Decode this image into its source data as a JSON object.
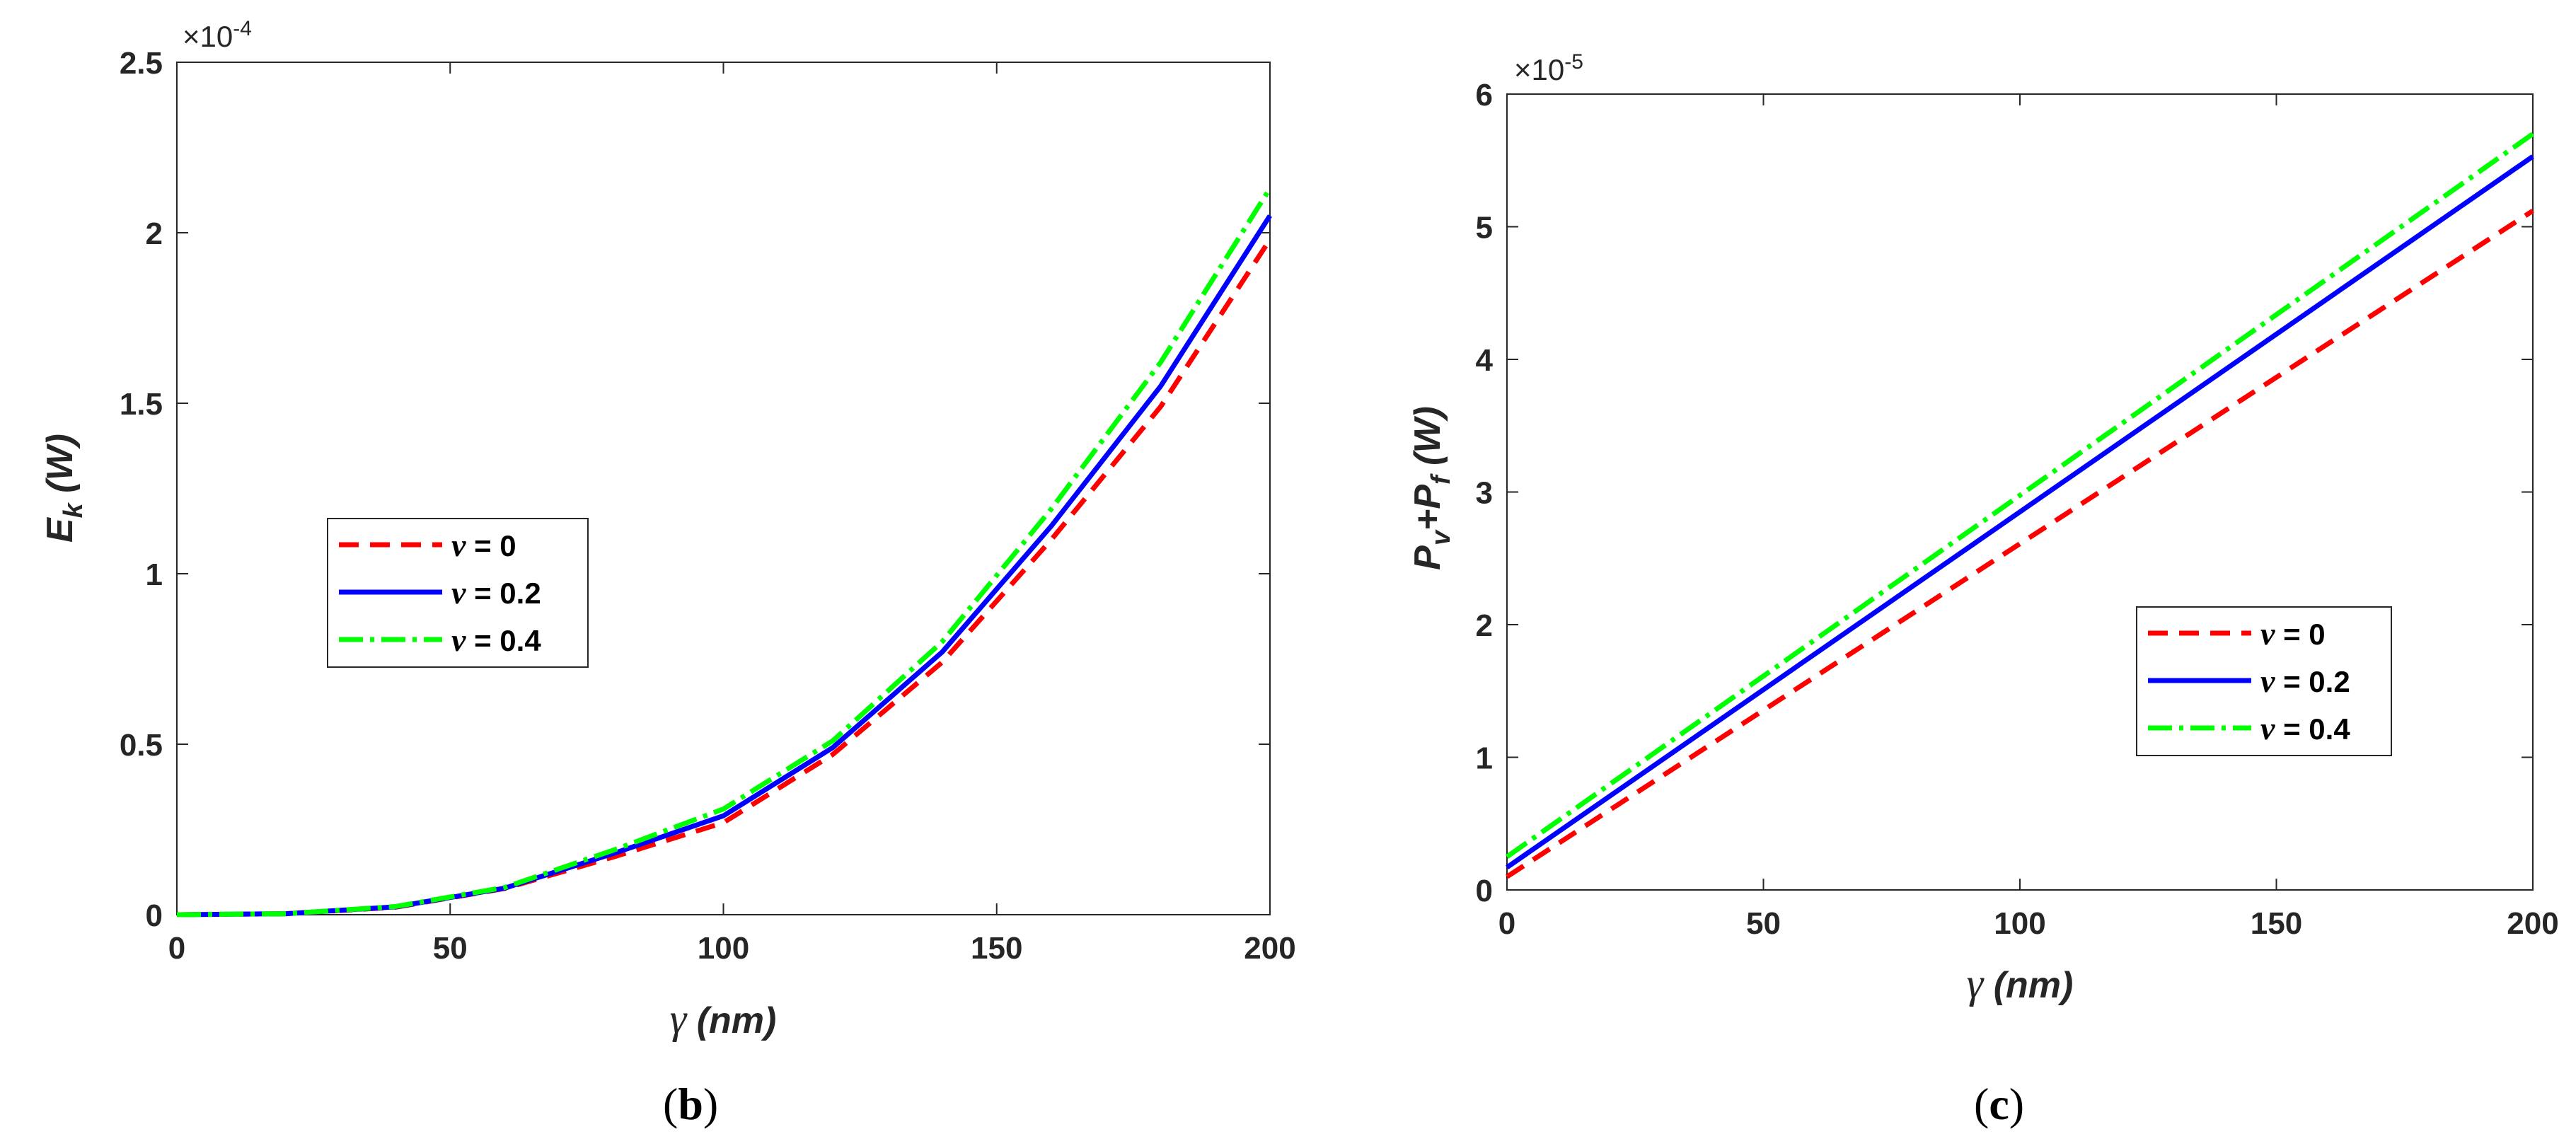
{
  "chart_data": [
    {
      "type": "line",
      "panel_caption": "b",
      "exponent_label": "×10",
      "exponent_power": "-4",
      "exponent_scale": 0.0001,
      "ylabel_main": "E",
      "ylabel_sub": "k",
      "ylabel_unit": " (W)",
      "xlabel_greek": "γ",
      "xlabel_unit": " (nm)",
      "xlim": [
        0,
        200
      ],
      "ylim": [
        0,
        2.5
      ],
      "xticks": [
        0,
        50,
        100,
        150,
        200
      ],
      "yticks": [
        0,
        0.5,
        1,
        1.5,
        2,
        2.5
      ],
      "xtick_labels": [
        "0",
        "50",
        "100",
        "150",
        "200"
      ],
      "ytick_labels": [
        "0",
        "0.5",
        "1",
        "1.5",
        "2",
        "2.5"
      ],
      "legend_position": "center-left",
      "x": [
        0,
        20,
        40,
        60,
        80,
        100,
        120,
        140,
        160,
        180,
        200
      ],
      "series": [
        {
          "name_greek": "ν",
          "name_rest": " = 0",
          "color": "#ff0000",
          "dash": "dashed",
          "values": [
            0,
            0.003,
            0.022,
            0.077,
            0.17,
            0.27,
            0.47,
            0.74,
            1.1,
            1.49,
            1.98
          ]
        },
        {
          "name_greek": "ν",
          "name_rest": " = 0.2",
          "color": "#0000ff",
          "dash": "solid",
          "values": [
            0,
            0.003,
            0.023,
            0.078,
            0.18,
            0.29,
            0.49,
            0.77,
            1.14,
            1.55,
            2.05
          ]
        },
        {
          "name_greek": "ν",
          "name_rest": " = 0.4",
          "color": "#00ff00",
          "dash": "dashdot",
          "values": [
            0,
            0.003,
            0.024,
            0.08,
            0.19,
            0.31,
            0.51,
            0.8,
            1.19,
            1.62,
            2.13
          ]
        }
      ]
    },
    {
      "type": "line",
      "panel_caption": "c",
      "exponent_label": "×10",
      "exponent_power": "-5",
      "exponent_scale": 1e-05,
      "ylabel_main": "P",
      "ylabel_sub1": "v",
      "ylabel_mid": "+P",
      "ylabel_sub2": "f",
      "ylabel_unit": " (W)",
      "xlabel_greek": "γ",
      "xlabel_unit": " (nm)",
      "xlim": [
        0,
        200
      ],
      "ylim": [
        0,
        6
      ],
      "xticks": [
        0,
        50,
        100,
        150,
        200
      ],
      "yticks": [
        0,
        1,
        2,
        3,
        4,
        5,
        6
      ],
      "xtick_labels": [
        "0",
        "50",
        "100",
        "150",
        "200"
      ],
      "ytick_labels": [
        "0",
        "1",
        "2",
        "3",
        "4",
        "5",
        "6"
      ],
      "legend_position": "center-right",
      "x": [
        0,
        200
      ],
      "series": [
        {
          "name_greek": "ν",
          "name_rest": " = 0",
          "color": "#ff0000",
          "dash": "dashed",
          "values": [
            0.1,
            5.12
          ]
        },
        {
          "name_greek": "ν",
          "name_rest": " = 0.2",
          "color": "#0000ff",
          "dash": "solid",
          "values": [
            0.17,
            5.53
          ]
        },
        {
          "name_greek": "ν",
          "name_rest": " = 0.4",
          "color": "#00ff00",
          "dash": "dashdot",
          "values": [
            0.25,
            5.7
          ]
        }
      ]
    }
  ]
}
